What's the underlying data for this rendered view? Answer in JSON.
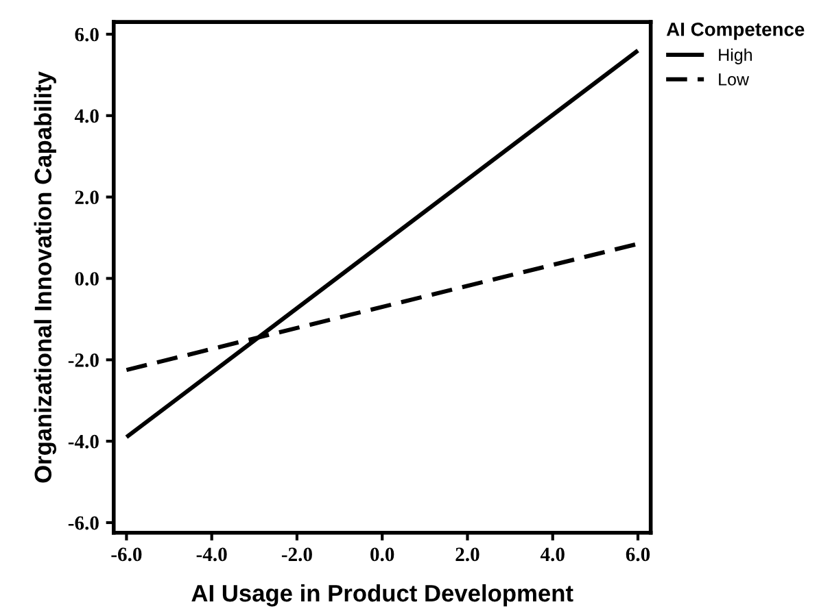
{
  "chart_data": {
    "type": "line",
    "xlabel": "AI Usage in Product Development",
    "ylabel": "Organizational Innovation Capability",
    "legend_title": "AI Competence",
    "x": [
      -6,
      6
    ],
    "series": [
      {
        "name": "High",
        "color": "#000000",
        "values": [
          -3.9,
          5.6
        ],
        "line_style": "solid"
      },
      {
        "name": "Low",
        "color": "#000000",
        "values": [
          -2.25,
          0.85
        ],
        "line_style": "dashed"
      }
    ],
    "xlim": [
      -6.3,
      6.3
    ],
    "ylim": [
      -6.25,
      6.3
    ],
    "xticks": [
      {
        "value": -6,
        "label": "-6.0"
      },
      {
        "value": -4,
        "label": "-4.0"
      },
      {
        "value": -2,
        "label": "-2.0"
      },
      {
        "value": 0,
        "label": "0.0"
      },
      {
        "value": 2,
        "label": "2.0"
      },
      {
        "value": 4,
        "label": "4.0"
      },
      {
        "value": 6,
        "label": "6.0"
      }
    ],
    "yticks": [
      {
        "value": -6,
        "label": "-6.0"
      },
      {
        "value": -4,
        "label": "-4.0"
      },
      {
        "value": -2,
        "label": "-2.0"
      },
      {
        "value": 0,
        "label": "0.0"
      },
      {
        "value": 2,
        "label": "2.0"
      },
      {
        "value": 4,
        "label": "4.0"
      },
      {
        "value": 6,
        "label": "6.0"
      }
    ],
    "grid": false,
    "legend": "top right",
    "marker": "none"
  }
}
